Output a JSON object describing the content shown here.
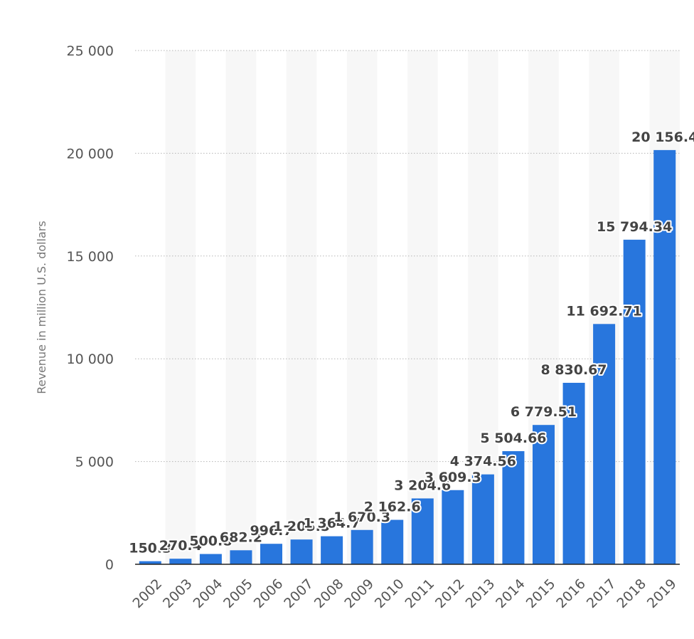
{
  "chart_data": {
    "type": "bar",
    "title": "",
    "xlabel": "",
    "ylabel": "Revenue in million U.S. dollars",
    "ylim": [
      0,
      25000
    ],
    "yticks": [
      0,
      5000,
      10000,
      15000,
      20000,
      25000
    ],
    "ytick_labels": [
      "0",
      "5 000",
      "10 000",
      "15 000",
      "20 000",
      "25 000"
    ],
    "grid": true,
    "bar_color": "#2876dd",
    "categories": [
      "2002",
      "2003",
      "2004",
      "2005",
      "2006",
      "2007",
      "2008",
      "2009",
      "2010",
      "2011",
      "2012",
      "2013",
      "2014",
      "2015",
      "2016",
      "2017",
      "2018",
      "2019"
    ],
    "values": [
      150.3,
      270.4,
      500.8,
      682.2,
      996.7,
      1205.5,
      1364.7,
      1670.3,
      2162.6,
      3204.6,
      3609.3,
      4374.56,
      5504.66,
      6779.51,
      8830.67,
      11692.71,
      15794.34,
      20156.4
    ],
    "value_labels": [
      "150.3",
      "270.4",
      "500.8",
      "682.2",
      "996.7",
      "1 205.5",
      "1 364.7",
      "1 670.3",
      "2 162.6",
      "3 204.6",
      "3 609.3",
      "4 374.56",
      "5 504.66",
      "6 779.51",
      "8 830.67",
      "11 692.71",
      "15 794.34",
      "20 156.4"
    ]
  }
}
